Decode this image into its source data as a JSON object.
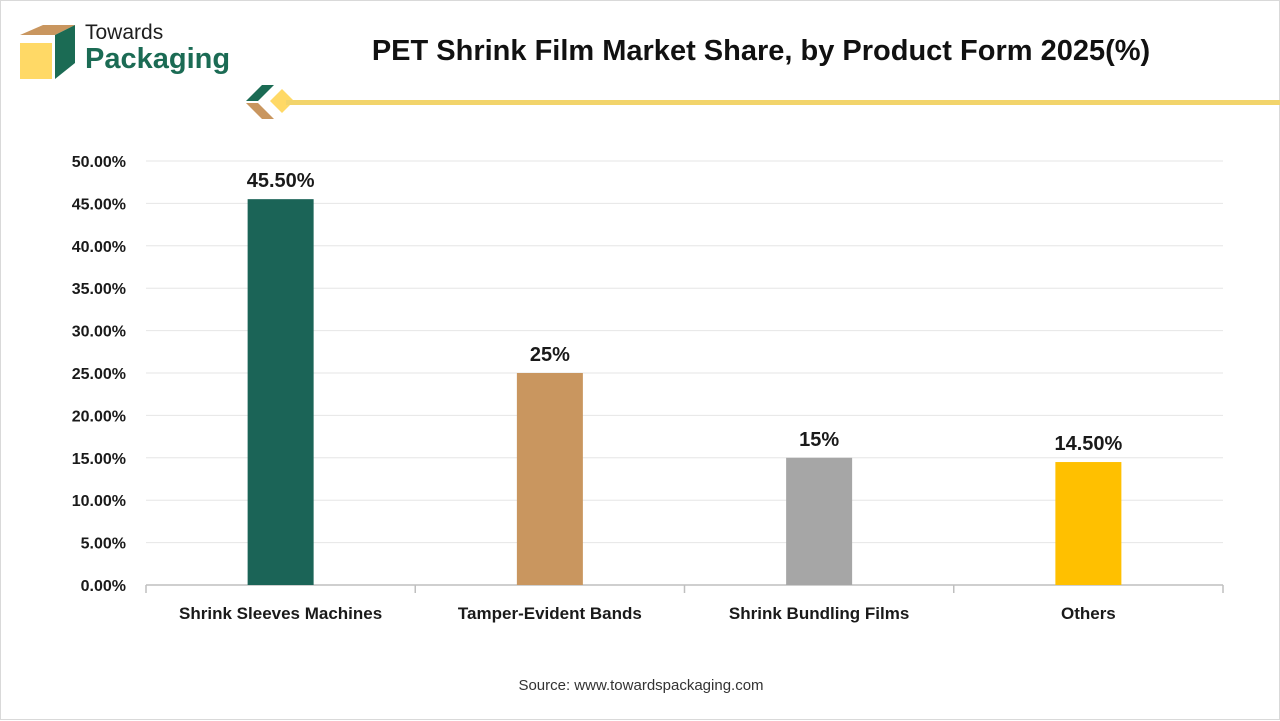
{
  "header": {
    "brand_top": "Towards",
    "brand_bottom": "Packaging",
    "title": "PET Shrink Film Market Share, by Product Form 2025(%)"
  },
  "footer": {
    "source": "Source: www.towardspackaging.com"
  },
  "colors": {
    "accent_yellow": "#f2d46b",
    "brand_green": "#1b6b54"
  },
  "chart_data": {
    "type": "bar",
    "categories": [
      "Shrink Sleeves Machines",
      "Tamper-Evident Bands",
      "Shrink Bundling Films",
      "Others"
    ],
    "values": [
      45.5,
      25,
      15,
      14.5
    ],
    "data_labels": [
      "45.50%",
      "25%",
      "15%",
      "14.50%"
    ],
    "bar_colors": [
      "#1b6457",
      "#c9965f",
      "#a6a6a6",
      "#ffc000"
    ],
    "ylim": [
      0,
      50
    ],
    "yticks": [
      0,
      5,
      10,
      15,
      20,
      25,
      30,
      35,
      40,
      45,
      50
    ],
    "ytick_labels": [
      "0.00%",
      "5.00%",
      "10.00%",
      "15.00%",
      "20.00%",
      "25.00%",
      "30.00%",
      "35.00%",
      "40.00%",
      "45.00%",
      "50.00%"
    ],
    "grid": true,
    "legend": "none",
    "xlabel": "",
    "ylabel": ""
  }
}
